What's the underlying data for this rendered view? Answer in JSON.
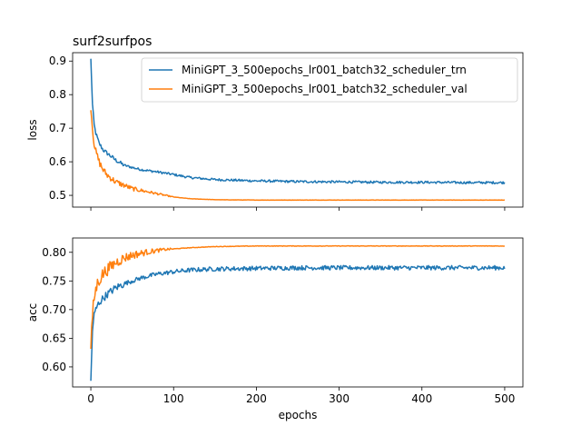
{
  "colors": {
    "trn": "#1f77b4",
    "val": "#ff7f0e",
    "axis": "#000000",
    "legend_border": "#cccccc"
  },
  "chart_data": [
    {
      "type": "line",
      "title": "surf2surfpos",
      "xlabel": "",
      "ylabel": "loss",
      "xlim": [
        -22,
        522
      ],
      "ylim": [
        0.465,
        0.925
      ],
      "xticks": [
        0,
        100,
        200,
        300,
        400,
        500
      ],
      "xtick_labels_shown": false,
      "yticks": [
        0.5,
        0.6,
        0.7,
        0.8,
        0.9
      ],
      "ytick_labels": [
        "0.5",
        "0.6",
        "0.7",
        "0.8",
        "0.9"
      ],
      "grid": false,
      "legend": {
        "placement": "top-right"
      },
      "series": [
        {
          "name": "MiniGPT_3_500epochs_lr001_batch32_scheduler_trn",
          "color_key": "trn",
          "x": [
            0,
            2,
            4,
            6,
            8,
            10,
            15,
            20,
            30,
            40,
            50,
            60,
            80,
            100,
            120,
            150,
            200,
            250,
            300,
            350,
            400,
            450,
            500
          ],
          "y": [
            0.905,
            0.77,
            0.71,
            0.685,
            0.67,
            0.655,
            0.635,
            0.625,
            0.605,
            0.59,
            0.583,
            0.577,
            0.57,
            0.562,
            0.553,
            0.547,
            0.543,
            0.541,
            0.54,
            0.539,
            0.539,
            0.538,
            0.538
          ]
        },
        {
          "name": "MiniGPT_3_500epochs_lr001_batch32_scheduler_val",
          "color_key": "val",
          "x": [
            0,
            2,
            4,
            6,
            8,
            10,
            15,
            20,
            30,
            40,
            50,
            60,
            70,
            80,
            90,
            100,
            120,
            150,
            200,
            250,
            300,
            350,
            400,
            450,
            500
          ],
          "y": [
            0.765,
            0.7,
            0.655,
            0.63,
            0.615,
            0.6,
            0.575,
            0.56,
            0.54,
            0.53,
            0.52,
            0.515,
            0.51,
            0.505,
            0.5,
            0.495,
            0.49,
            0.487,
            0.486,
            0.486,
            0.486,
            0.486,
            0.486,
            0.486,
            0.486
          ]
        }
      ]
    },
    {
      "type": "line",
      "title": "",
      "xlabel": "epochs",
      "ylabel": "acc",
      "xlim": [
        -22,
        522
      ],
      "ylim": [
        0.565,
        0.825
      ],
      "xticks": [
        0,
        100,
        200,
        300,
        400,
        500
      ],
      "xtick_labels": [
        "0",
        "100",
        "200",
        "300",
        "400",
        "500"
      ],
      "xtick_labels_shown": true,
      "yticks": [
        0.6,
        0.65,
        0.7,
        0.75,
        0.8
      ],
      "ytick_labels": [
        "0.60",
        "0.65",
        "0.70",
        "0.75",
        "0.80"
      ],
      "grid": false,
      "series": [
        {
          "name": "MiniGPT_3_500epochs_lr001_batch32_scheduler_trn",
          "color_key": "trn",
          "x": [
            0,
            2,
            4,
            6,
            8,
            10,
            15,
            20,
            30,
            40,
            50,
            60,
            80,
            100,
            120,
            150,
            200,
            250,
            300,
            350,
            400,
            450,
            500
          ],
          "y": [
            0.575,
            0.665,
            0.69,
            0.7,
            0.707,
            0.712,
            0.72,
            0.727,
            0.738,
            0.745,
            0.75,
            0.755,
            0.762,
            0.766,
            0.769,
            0.771,
            0.772,
            0.773,
            0.773,
            0.773,
            0.773,
            0.773,
            0.773
          ]
        },
        {
          "name": "MiniGPT_3_500epochs_lr001_batch32_scheduler_val",
          "color_key": "val",
          "x": [
            0,
            2,
            4,
            6,
            8,
            10,
            15,
            20,
            30,
            40,
            50,
            60,
            70,
            80,
            90,
            100,
            120,
            150,
            200,
            250,
            300,
            350,
            400,
            450,
            500
          ],
          "y": [
            0.63,
            0.69,
            0.72,
            0.735,
            0.745,
            0.752,
            0.763,
            0.77,
            0.782,
            0.79,
            0.795,
            0.798,
            0.801,
            0.803,
            0.805,
            0.806,
            0.808,
            0.81,
            0.811,
            0.811,
            0.811,
            0.811,
            0.811,
            0.811,
            0.811
          ]
        }
      ]
    }
  ]
}
